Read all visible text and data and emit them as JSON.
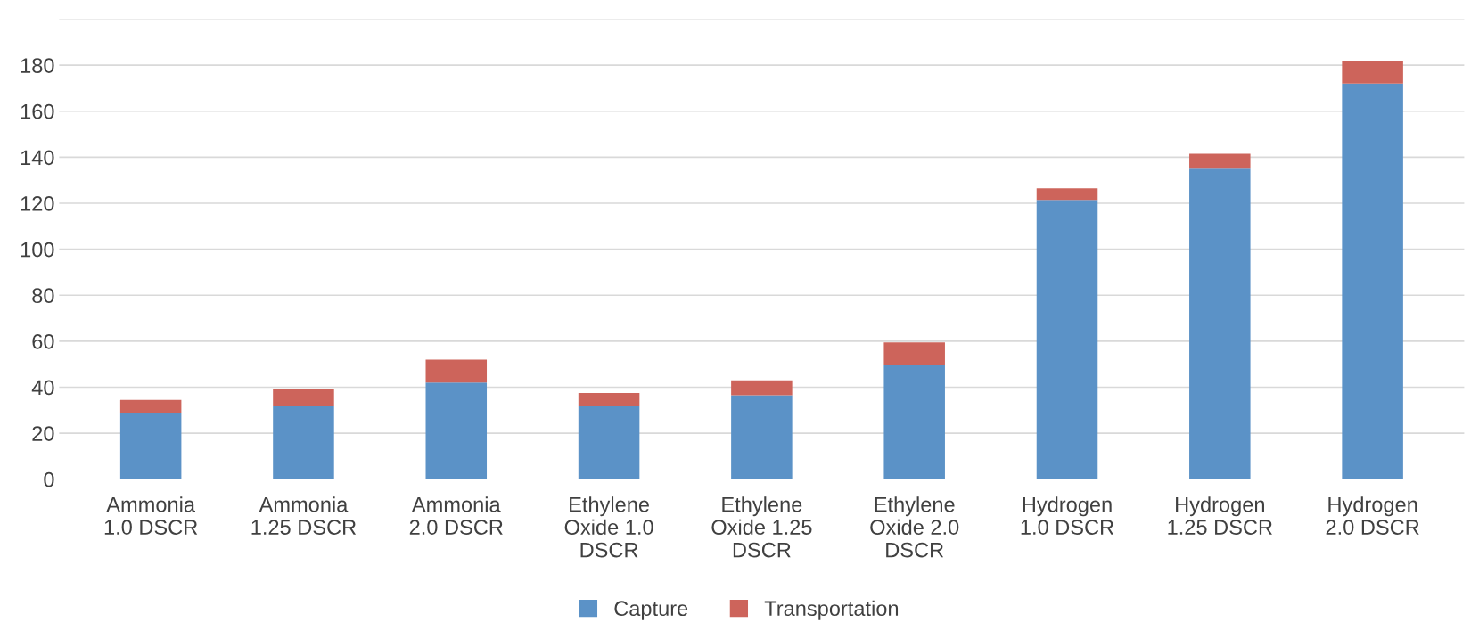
{
  "chart_data": {
    "type": "bar",
    "stacked": true,
    "categories": [
      "Ammonia\n1.0 DSCR",
      "Ammonia\n1.25 DSCR",
      "Ammonia\n2.0 DSCR",
      "Ethylene\nOxide 1.0\nDSCR",
      "Ethylene\nOxide 1.25\nDSCR",
      "Ethylene\nOxide 2.0\nDSCR",
      "Hydrogen\n1.0 DSCR",
      "Hydrogen\n1.25 DSCR",
      "Hydrogen\n2.0 DSCR"
    ],
    "series": [
      {
        "name": "Capture",
        "color": "#5b92c7",
        "values": [
          29,
          32,
          42,
          32,
          36.5,
          49.5,
          121.5,
          135,
          172
        ]
      },
      {
        "name": "Transportation",
        "color": "#cd645b",
        "values": [
          5.5,
          7,
          10,
          5.5,
          6.5,
          10,
          5,
          6.5,
          10
        ]
      }
    ],
    "ylim": [
      0,
      200
    ],
    "yticks": [
      0,
      20,
      40,
      60,
      80,
      100,
      120,
      140,
      160,
      180,
      {
        "value": 200,
        "label": null
      }
    ],
    "grid": "y",
    "legend": "bottom"
  }
}
